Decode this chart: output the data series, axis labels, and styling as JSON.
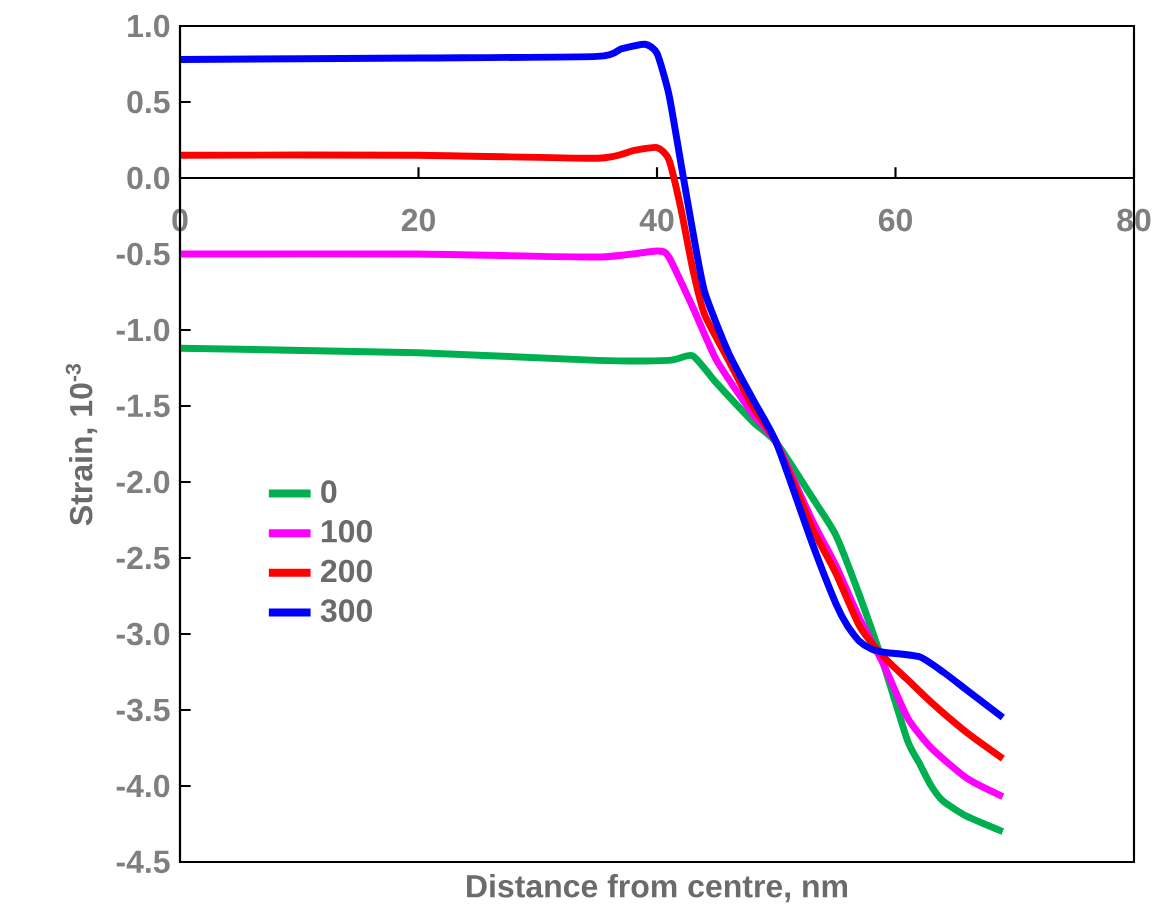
{
  "chart_data": {
    "type": "line",
    "xlabel": "Distance from centre, nm",
    "ylabel": "Strain, 10$^{-3}$",
    "xlim": [
      0,
      80
    ],
    "ylim": [
      -4.5,
      1.0
    ],
    "xticks": [
      0,
      20,
      40,
      60,
      80
    ],
    "yticks": [
      {
        "value": -4.5,
        "label": "-4.5"
      },
      {
        "value": -4.0,
        "label": "-4.0"
      },
      {
        "value": -3.5,
        "label": "-3.5"
      },
      {
        "value": -3.0,
        "label": "-3.0"
      },
      {
        "value": -2.5,
        "label": "-2.5"
      },
      {
        "value": -2.0,
        "label": "-2.0"
      },
      {
        "value": -1.5,
        "label": "-1.5"
      },
      {
        "value": -1.0,
        "label": "-1.0"
      },
      {
        "value": -0.5,
        "label": "-0.5"
      },
      {
        "value": 0.0,
        "label": "0.0"
      },
      {
        "value": 0.5,
        "label": "0.5"
      },
      {
        "value": 1.0,
        "label": "1.0"
      }
    ],
    "legend": "left",
    "grid": false,
    "marker": "none",
    "line_style": "solid",
    "series": [
      {
        "name": "0",
        "color": "#00b050",
        "x": [
          0,
          20,
          35,
          41,
          43,
          45,
          48,
          50,
          53,
          55,
          57,
          59,
          61,
          62,
          63,
          64,
          66,
          69
        ],
        "values": [
          -1.12,
          -1.15,
          -1.2,
          -1.2,
          -1.17,
          -1.35,
          -1.6,
          -1.74,
          -2.1,
          -2.35,
          -2.75,
          -3.2,
          -3.7,
          -3.85,
          -4.0,
          -4.1,
          -4.2,
          -4.3
        ]
      },
      {
        "name": "100",
        "color": "#ff00ff",
        "x": [
          0,
          20,
          35,
          40,
          41,
          43,
          45,
          48,
          50,
          53,
          55,
          57,
          59,
          61,
          63,
          66,
          69
        ],
        "values": [
          -0.5,
          -0.5,
          -0.52,
          -0.48,
          -0.52,
          -0.85,
          -1.2,
          -1.55,
          -1.74,
          -2.25,
          -2.55,
          -2.9,
          -3.2,
          -3.55,
          -3.75,
          -3.95,
          -4.07
        ]
      },
      {
        "name": "200",
        "color": "#ff0000",
        "x": [
          0,
          20,
          35,
          38,
          40,
          41,
          42,
          43,
          44,
          46,
          48,
          50,
          53,
          55,
          57,
          59,
          61,
          63,
          66,
          69
        ],
        "values": [
          0.15,
          0.15,
          0.13,
          0.18,
          0.2,
          0.12,
          -0.2,
          -0.6,
          -0.9,
          -1.2,
          -1.5,
          -1.74,
          -2.3,
          -2.6,
          -2.95,
          -3.15,
          -3.3,
          -3.45,
          -3.65,
          -3.82
        ]
      },
      {
        "name": "300",
        "color": "#0000ff",
        "x": [
          0,
          20,
          35,
          37,
          39,
          40,
          41,
          42,
          43,
          44,
          46,
          48,
          50,
          53,
          55,
          56,
          57,
          58,
          59,
          62,
          64,
          66,
          69
        ],
        "values": [
          0.78,
          0.79,
          0.8,
          0.85,
          0.88,
          0.82,
          0.55,
          0.1,
          -0.35,
          -0.75,
          -1.15,
          -1.45,
          -1.74,
          -2.4,
          -2.8,
          -2.95,
          -3.05,
          -3.1,
          -3.12,
          -3.15,
          -3.25,
          -3.37,
          -3.55
        ]
      }
    ]
  }
}
